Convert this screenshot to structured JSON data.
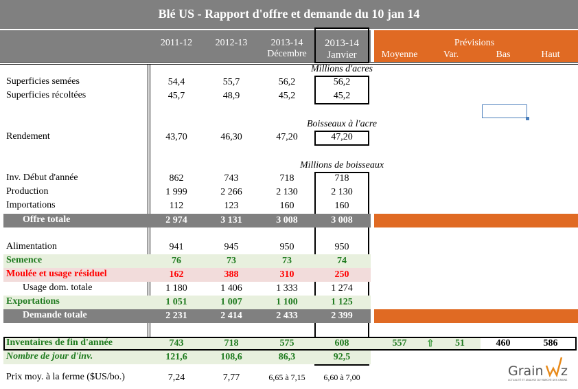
{
  "title": "Blé US - Rapport d'offre et demande du 10 jan 14",
  "columns": {
    "c1": "2011-12",
    "c2": "2012-13",
    "c3a": "2013-14",
    "c3b": "Décembre",
    "c4a": "2013-14",
    "c4b": "Janvier"
  },
  "forecast": {
    "title": "Prévisions",
    "moyenne": "Moyenne",
    "var": "Var.",
    "bas": "Bas",
    "haut": "Haut"
  },
  "units": {
    "acres": "Millions d'acres",
    "boisseaux_acre": "Boisseaux à l'acre",
    "boisseaux": "Millions de boisseaux"
  },
  "colors": {
    "header_gray": "#808080",
    "forecast_orange": "#e06a23",
    "green_text": "#1e7a1e",
    "green_bg": "#e8f0de",
    "red_text": "#ff0000",
    "pink_bg": "#f2dcdb",
    "selection": "#4a7ebb"
  },
  "rows": [
    {
      "label": "Superficies semées",
      "values": [
        "54,4",
        "55,7",
        "56,2",
        "56,2"
      ],
      "style": "normal"
    },
    {
      "label": "Superficies récoltées",
      "values": [
        "45,7",
        "48,9",
        "45,2",
        "45,2"
      ],
      "style": "normal"
    },
    {
      "label": "Rendement",
      "values": [
        "43,70",
        "46,30",
        "47,20",
        "47,20"
      ],
      "style": "normal"
    },
    {
      "label": "Inv. Début d'année",
      "values": [
        "862",
        "743",
        "718",
        "718"
      ],
      "style": "normal"
    },
    {
      "label": "Production",
      "values": [
        "1 999",
        "2 266",
        "2 130",
        "2 130"
      ],
      "style": "normal"
    },
    {
      "label": "Importations",
      "values": [
        "112",
        "123",
        "160",
        "160"
      ],
      "style": "normal"
    },
    {
      "label": "Offre totale",
      "values": [
        "2 974",
        "3 131",
        "3 008",
        "3 008"
      ],
      "style": "total"
    },
    {
      "label": "Alimentation",
      "values": [
        "941",
        "945",
        "950",
        "950"
      ],
      "style": "normal"
    },
    {
      "label": "Semence",
      "values": [
        "76",
        "73",
        "73",
        "74"
      ],
      "style": "green"
    },
    {
      "label": "Moulée et usage résiduel",
      "values": [
        "162",
        "388",
        "310",
        "250"
      ],
      "style": "red"
    },
    {
      "label": "Usage dom. totale",
      "values": [
        "1 180",
        "1 406",
        "1 333",
        "1 274"
      ],
      "style": "indent"
    },
    {
      "label": "Exportations",
      "values": [
        "1 051",
        "1 007",
        "1 100",
        "1 125"
      ],
      "style": "green"
    },
    {
      "label": "Demande totale",
      "values": [
        "2 231",
        "2 414",
        "2 433",
        "2 399"
      ],
      "style": "total"
    },
    {
      "label": "Inventaires de fin d'année",
      "values": [
        "743",
        "718",
        "575",
        "608"
      ],
      "style": "green",
      "forecast": {
        "moyenne": "557",
        "var": "51",
        "var_direction": "up",
        "bas": "460",
        "haut": "586"
      }
    },
    {
      "label": "Nombre de jour d'inv.",
      "values": [
        "121,6",
        "108,6",
        "86,3",
        "92,5"
      ],
      "style": "greenitalic"
    },
    {
      "label": "Prix moy. à la ferme ($US/bo.)",
      "values": [
        "7,24",
        "7,77",
        "6,65 à 7,15",
        "6,60 à 7,00"
      ],
      "style": "price"
    }
  ],
  "logo": {
    "text": "GrainWiz",
    "tagline": "ACTUALITÉ ET ANALYSE DU MARCHÉ DES GRAINS"
  }
}
